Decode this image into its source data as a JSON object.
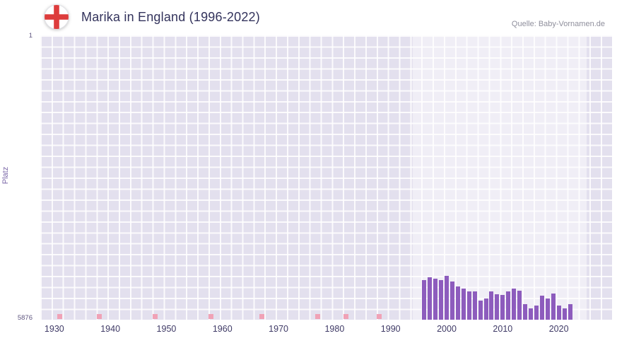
{
  "header": {
    "title": "Marika in England (1996-2022)",
    "source": "Quelle: Baby-Vornamen.de",
    "flag_icon": "england-flag-icon"
  },
  "y_axis": {
    "label": "Platz",
    "top_tick": "1",
    "bottom_tick": "5876"
  },
  "chart_data": {
    "type": "bar",
    "title": "Marika in England (1996-2022)",
    "xlabel": "",
    "ylabel": "Platz",
    "ylim": [
      1,
      5876
    ],
    "y_inverted": true,
    "x_range": [
      1927.5,
      2029.5
    ],
    "x_ticks": [
      1930,
      1940,
      1950,
      1960,
      1970,
      1980,
      1990,
      2000,
      2010,
      2020
    ],
    "highlight_range": [
      1994,
      2025
    ],
    "grid": true,
    "legend": false,
    "series": [
      {
        "name": "Platz",
        "x": [
          1996,
          1997,
          1998,
          1999,
          2000,
          2001,
          2002,
          2003,
          2004,
          2005,
          2006,
          2007,
          2008,
          2009,
          2010,
          2011,
          2012,
          2013,
          2014,
          2015,
          2016,
          2017,
          2018,
          2019,
          2020,
          2021,
          2022
        ],
        "values": [
          5060,
          5000,
          5030,
          5060,
          4970,
          5090,
          5190,
          5230,
          5290,
          5290,
          5480,
          5440,
          5290,
          5350,
          5360,
          5290,
          5230,
          5280,
          5550,
          5640,
          5580,
          5380,
          5440,
          5340,
          5580,
          5640,
          5550
        ]
      }
    ],
    "unranked_marker_years": [
      1931,
      1938,
      1948,
      1958,
      1967,
      1977,
      1982,
      1988
    ],
    "colors": {
      "bar": "#8d5cbd",
      "unranked_marker": "#f0a2b6",
      "plot_background": "#e3e0ee",
      "highlight_background": "#eeebf8",
      "gridline": "#ffffff",
      "title_text": "#33335c",
      "flag_cross": "#dd3c3c"
    }
  }
}
